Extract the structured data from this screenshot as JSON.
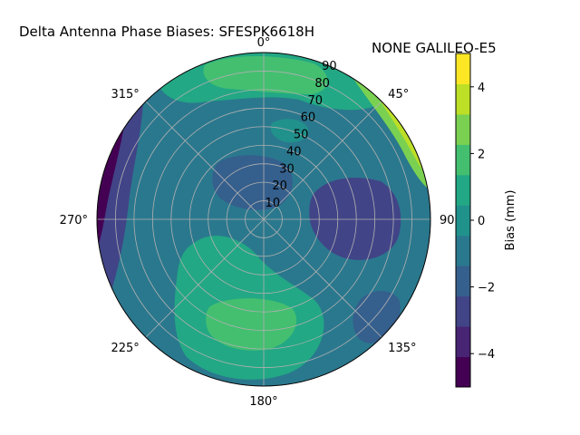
{
  "title": {
    "left": "Delta Antenna Phase Biases: SFESPK6618H",
    "right": "NONE GALILEO-E5"
  },
  "chart_data": {
    "type": "polar-contour",
    "title": "Delta Antenna Phase Biases: SFESPK6618H     NONE GALILEO-E5",
    "azimuth_ticks": [
      {
        "deg": 0,
        "label": "0°"
      },
      {
        "deg": 45,
        "label": "45°"
      },
      {
        "deg": 90,
        "label": "90°"
      },
      {
        "deg": 135,
        "label": "135°"
      },
      {
        "deg": 180,
        "label": "180°"
      },
      {
        "deg": 225,
        "label": "225°"
      },
      {
        "deg": 270,
        "label": "270°"
      },
      {
        "deg": 315,
        "label": "315°"
      }
    ],
    "radial_ticks": [
      10,
      20,
      30,
      40,
      50,
      60,
      70,
      80,
      90
    ],
    "radial_range": [
      0,
      90
    ],
    "grid": true,
    "colorbar": {
      "label": "Bias (mm)",
      "range": [
        -5,
        5
      ],
      "ticks": [
        -4,
        -2,
        0,
        2,
        4
      ],
      "levels": [
        -5,
        -4.5,
        -4,
        -3.5,
        -3,
        -2.5,
        -2,
        -1.5,
        -1,
        -0.5,
        0,
        0.5,
        1,
        1.5,
        2,
        2.5,
        3,
        3.5,
        4,
        4.5,
        5
      ],
      "colors": [
        "#440154",
        "#482475",
        "#414487",
        "#355f8d",
        "#2a788e",
        "#21918c",
        "#22a884",
        "#44bf70",
        "#7ad151",
        "#bddf26",
        "#fde725"
      ]
    },
    "regions": [
      {
        "name": "background",
        "value": -0.5
      },
      {
        "name": "south-lobe",
        "value": 1.5
      },
      {
        "name": "south-core",
        "value": 2.5
      },
      {
        "name": "north-band",
        "value": 1.5
      },
      {
        "name": "north-core",
        "value": 2.5
      },
      {
        "name": "north-small",
        "value": 0.5
      },
      {
        "name": "west-edge",
        "value": -2.5
      },
      {
        "name": "west-rim",
        "value": -4.5
      },
      {
        "name": "east-low",
        "value": -2.5
      },
      {
        "name": "east-low-core",
        "value": -3.0
      },
      {
        "name": "center-low",
        "value": -1.5
      },
      {
        "name": "southeast-low",
        "value": -2.0
      },
      {
        "name": "northeast-rim",
        "value": 3.0
      },
      {
        "name": "northeast-rim-peak",
        "value": 4.5
      }
    ]
  }
}
